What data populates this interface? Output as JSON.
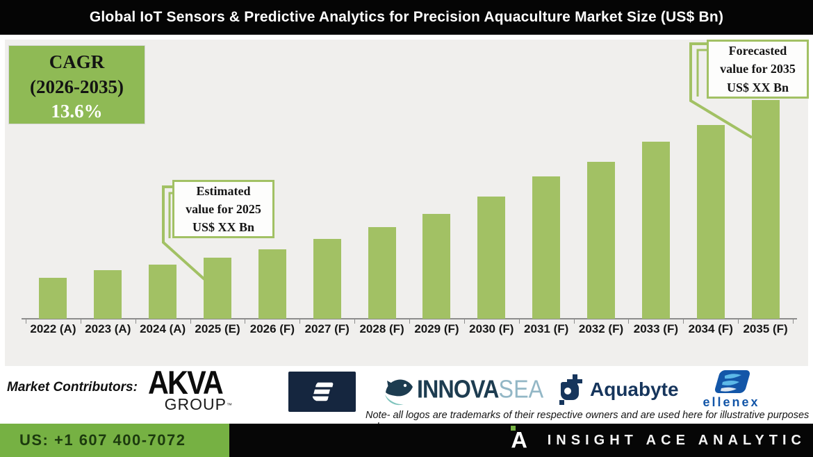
{
  "title": "Global IoT Sensors & Predictive Analytics for Precision Aquaculture Market Size (US$ Bn)",
  "cagr_box": {
    "line1": "CAGR",
    "line2": "(2026-2035)",
    "line3": "13.6%"
  },
  "callouts": {
    "estimated": {
      "line1": "Estimated",
      "line2": "value for 2025",
      "line3": "US$ XX Bn"
    },
    "forecasted": {
      "line1": "Forecasted",
      "line2": "value for 2035",
      "line3": "US$ XX Bn"
    }
  },
  "chart_data": {
    "type": "bar",
    "title": "Global IoT Sensors & Predictive Analytics for Precision Aquaculture Market Size (US$ Bn)",
    "categories": [
      "2022 (A)",
      "2023 (A)",
      "2024 (A)",
      "2025 (E)",
      "2026 (F)",
      "2027 (F)",
      "2028 (F)",
      "2029 (F)",
      "2030 (F)",
      "2031 (F)",
      "2032 (F)",
      "2033 (F)",
      "2034 (F)",
      "2035 (F)"
    ],
    "values": [
      18.7,
      22.2,
      24.8,
      27.9,
      31.7,
      36.5,
      41.9,
      47.9,
      55.9,
      65.1,
      71.7,
      81.0,
      88.6,
      100.0
    ],
    "value_note": "Actual US$ values masked as 'XX' on the graphic; values are relative bar heights indexed to 2035 = 100, consistent with 13.6% CAGR 2026-2035",
    "xlabel": "",
    "ylabel": "",
    "ylim": [
      0,
      105
    ],
    "grid": false,
    "y_axis_shown": false,
    "bar_color": "#a2c164",
    "plot_bg": "#f0efed",
    "legend": null
  },
  "contributors": {
    "label": "Market Contributors:",
    "akva": {
      "line1": "AKVA",
      "line2": "GROUP",
      "tm": "™"
    },
    "scaleaq": {
      "letter": "S"
    },
    "innovasea": {
      "part1": "INNOVA",
      "part2": "SEA"
    },
    "aquabyte": {
      "text": "Aquabyte"
    },
    "ellenex": {
      "text": "ellenex"
    }
  },
  "note_line1": "Note- all logos are trademarks of their respective owners and are used here for illustrative purposes",
  "note_line2": "only",
  "footer": {
    "phone": "US: +1 607 400-7072",
    "brand": "INSIGHT ACE ANALYTIC"
  },
  "colors": {
    "bar_green": "#a2c164",
    "cagr_green": "#8fba55",
    "footer_green": "#76b143",
    "title_bar_black": "#050505",
    "chart_bg": "#f0efed",
    "axis_gray": "#8c8c8c",
    "scaleaq_navy": "#15263f",
    "innovasea_dark": "#1d3c50",
    "innovasea_light": "#93b7c6",
    "aquabyte_navy": "#16355c",
    "ellenex_blue": "#1356a8"
  }
}
